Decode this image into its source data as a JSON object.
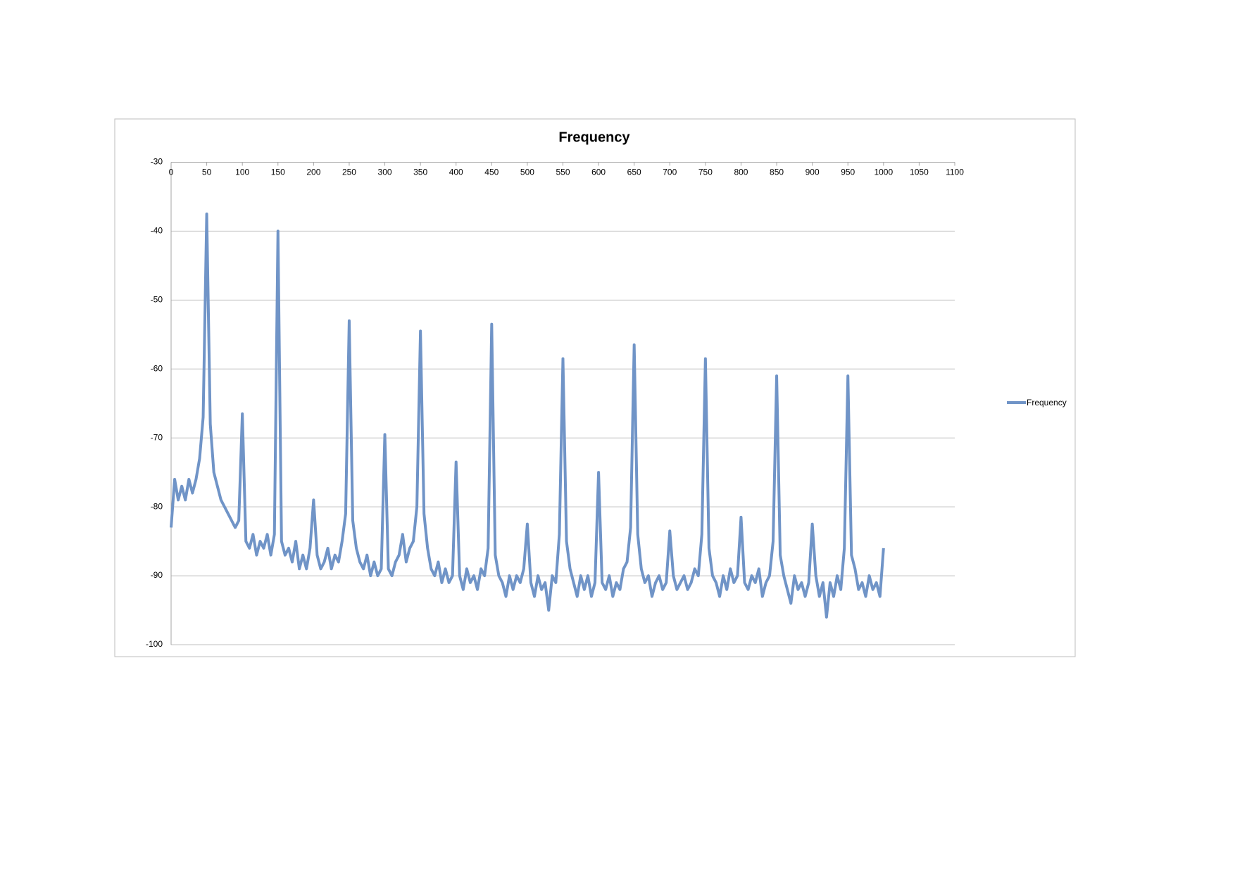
{
  "chart_data": {
    "type": "line",
    "title": "Frequency",
    "x": [
      0,
      5,
      10,
      15,
      20,
      25,
      30,
      35,
      40,
      45,
      50,
      55,
      60,
      65,
      70,
      75,
      80,
      85,
      90,
      95,
      100,
      105,
      110,
      115,
      120,
      125,
      130,
      135,
      140,
      145,
      150,
      155,
      160,
      165,
      170,
      175,
      180,
      185,
      190,
      195,
      200,
      205,
      210,
      215,
      220,
      225,
      230,
      235,
      240,
      245,
      250,
      255,
      260,
      265,
      270,
      275,
      280,
      285,
      290,
      295,
      300,
      305,
      310,
      315,
      320,
      325,
      330,
      335,
      340,
      345,
      350,
      355,
      360,
      365,
      370,
      375,
      380,
      385,
      390,
      395,
      400,
      405,
      410,
      415,
      420,
      425,
      430,
      435,
      440,
      445,
      450,
      455,
      460,
      465,
      470,
      475,
      480,
      485,
      490,
      495,
      500,
      505,
      510,
      515,
      520,
      525,
      530,
      535,
      540,
      545,
      550,
      555,
      560,
      565,
      570,
      575,
      580,
      585,
      590,
      595,
      600,
      605,
      610,
      615,
      620,
      625,
      630,
      635,
      640,
      645,
      650,
      655,
      660,
      665,
      670,
      675,
      680,
      685,
      690,
      695,
      700,
      705,
      710,
      715,
      720,
      725,
      730,
      735,
      740,
      745,
      750,
      755,
      760,
      765,
      770,
      775,
      780,
      785,
      790,
      795,
      800,
      805,
      810,
      815,
      820,
      825,
      830,
      835,
      840,
      845,
      850,
      855,
      860,
      865,
      870,
      875,
      880,
      885,
      890,
      895,
      900,
      905,
      910,
      915,
      920,
      925,
      930,
      935,
      940,
      945,
      950,
      955,
      960,
      965,
      970,
      975,
      980,
      985,
      990,
      995,
      1000
    ],
    "series": [
      {
        "name": "Frequency",
        "color": "#7094c7",
        "values": [
          -83,
          -76,
          -79,
          -77,
          -79,
          -76,
          -78,
          -76,
          -73,
          -67,
          -37.5,
          -68,
          -75,
          -77,
          -79,
          -80,
          -81,
          -82,
          -83,
          -82,
          -66.5,
          -85,
          -86,
          -84,
          -87,
          -85,
          -86,
          -84,
          -87,
          -84,
          -40,
          -85,
          -87,
          -86,
          -88,
          -85,
          -89,
          -87,
          -89,
          -86,
          -79,
          -87,
          -89,
          -88,
          -86,
          -89,
          -87,
          -88,
          -85,
          -81,
          -53,
          -82,
          -86,
          -88,
          -89,
          -87,
          -90,
          -88,
          -90,
          -89,
          -69.5,
          -89,
          -90,
          -88,
          -87,
          -84,
          -88,
          -86,
          -85,
          -80,
          -54.5,
          -81,
          -86,
          -89,
          -90,
          -88,
          -91,
          -89,
          -91,
          -90,
          -73.5,
          -90,
          -92,
          -89,
          -91,
          -90,
          -92,
          -89,
          -90,
          -86,
          -53.5,
          -87,
          -90,
          -91,
          -93,
          -90,
          -92,
          -90,
          -91,
          -89,
          -82.5,
          -91,
          -93,
          -90,
          -92,
          -91,
          -95,
          -90,
          -91,
          -84,
          -58.5,
          -85,
          -89,
          -91,
          -93,
          -90,
          -92,
          -90,
          -93,
          -91,
          -75,
          -91,
          -92,
          -90,
          -93,
          -91,
          -92,
          -89,
          -88,
          -83,
          -56.5,
          -84,
          -89,
          -91,
          -90,
          -93,
          -91,
          -90,
          -92,
          -91,
          -83.5,
          -90,
          -92,
          -91,
          -90,
          -92,
          -91,
          -89,
          -90,
          -84,
          -58.5,
          -86,
          -90,
          -91,
          -93,
          -90,
          -92,
          -89,
          -91,
          -90,
          -81.5,
          -91,
          -92,
          -90,
          -91,
          -89,
          -93,
          -91,
          -90,
          -85,
          -61,
          -87,
          -90,
          -92,
          -94,
          -90,
          -92,
          -91,
          -93,
          -91,
          -82.5,
          -90,
          -93,
          -91,
          -96,
          -91,
          -93,
          -90,
          -92,
          -86,
          -61,
          -87,
          -89,
          -92,
          -91,
          -93,
          -90,
          -92,
          -91,
          -93,
          -86
        ]
      }
    ],
    "xlim": [
      0,
      1100
    ],
    "xticks": [
      0,
      50,
      100,
      150,
      200,
      250,
      300,
      350,
      400,
      450,
      500,
      550,
      600,
      650,
      700,
      750,
      800,
      850,
      900,
      950,
      1000,
      1050,
      1100
    ],
    "ylim": [
      -100,
      -30
    ],
    "yticks": [
      -30,
      -40,
      -50,
      -60,
      -70,
      -80,
      -90,
      -100
    ],
    "grid": true,
    "legend": "right"
  }
}
